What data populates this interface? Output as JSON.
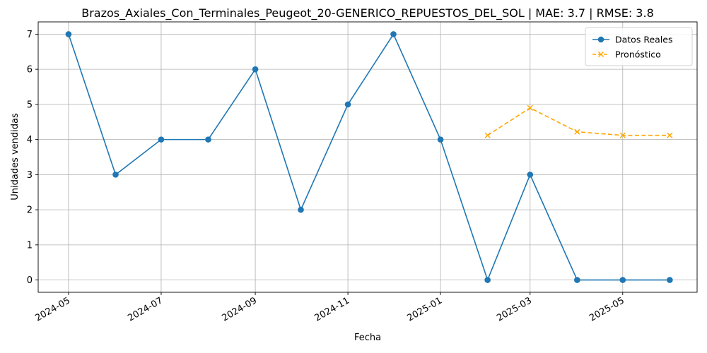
{
  "chart_data": {
    "type": "line",
    "title": "Brazos_Axiales_Con_Terminales_Peugeot_20-GENERICO_REPUESTOS_DEL_SOL | MAE: 3.7 | RMSE: 3.8",
    "xlabel": "Fecha",
    "ylabel": "Unidades vendidas",
    "ylim": [
      -0.35,
      7.35
    ],
    "xlim": [
      "2024-04-11",
      "2025-06-19"
    ],
    "grid": true,
    "legend_position": "top-right",
    "x_ticks": [
      "2024-05",
      "2024-07",
      "2024-09",
      "2024-11",
      "2025-01",
      "2025-03",
      "2025-05"
    ],
    "y_ticks": [
      0,
      1,
      2,
      3,
      4,
      5,
      6,
      7
    ],
    "series": [
      {
        "name": "Datos Reales",
        "color": "#1f77b4",
        "style": "solid",
        "marker": "circle",
        "x": [
          "2024-05-01",
          "2024-06-01",
          "2024-07-01",
          "2024-08-01",
          "2024-09-01",
          "2024-10-01",
          "2024-11-01",
          "2024-12-01",
          "2025-01-01",
          "2025-02-01",
          "2025-03-01",
          "2025-04-01",
          "2025-05-01",
          "2025-06-01"
        ],
        "values": [
          7,
          3,
          4,
          4,
          6,
          2,
          5,
          7,
          4,
          0,
          3,
          0,
          0,
          0
        ]
      },
      {
        "name": "Pronóstico",
        "color": "#ffa500",
        "style": "dashed",
        "marker": "x",
        "x": [
          "2025-02-01",
          "2025-03-01",
          "2025-04-01",
          "2025-05-01",
          "2025-06-01"
        ],
        "values": [
          4.12,
          4.9,
          4.22,
          4.12,
          4.12
        ]
      }
    ]
  }
}
